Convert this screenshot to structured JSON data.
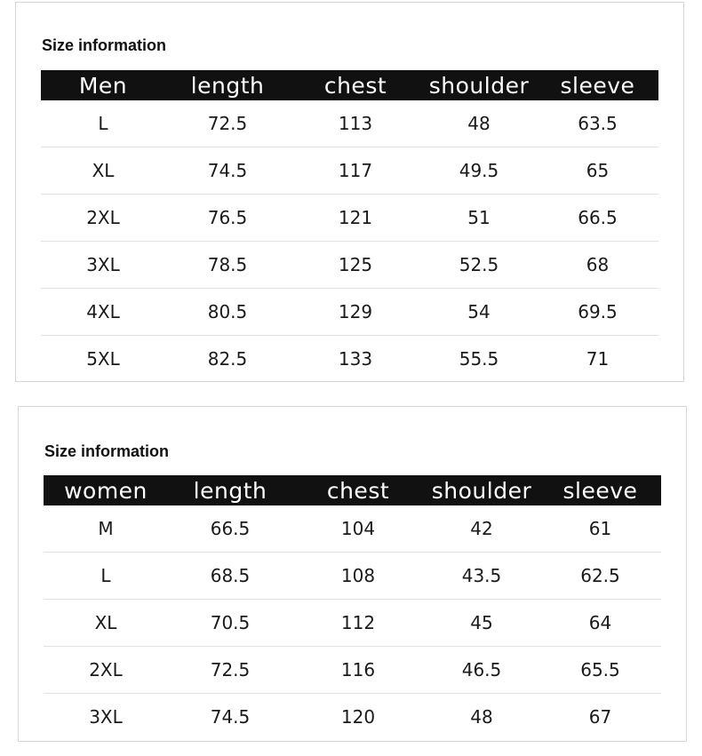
{
  "men": {
    "title": "Size information",
    "headers": [
      "Men",
      "length",
      "chest",
      "shoulder",
      "sleeve"
    ],
    "rows": [
      [
        "L",
        "72.5",
        "113",
        "48",
        "63.5"
      ],
      [
        "XL",
        "74.5",
        "117",
        "49.5",
        "65"
      ],
      [
        "2XL",
        "76.5",
        "121",
        "51",
        "66.5"
      ],
      [
        "3XL",
        "78.5",
        "125",
        "52.5",
        "68"
      ],
      [
        "4XL",
        "80.5",
        "129",
        "54",
        "69.5"
      ],
      [
        "5XL",
        "82.5",
        "133",
        "55.5",
        "71"
      ]
    ]
  },
  "women": {
    "title": "Size information",
    "headers": [
      "women",
      "length",
      "chest",
      "shoulder",
      "sleeve"
    ],
    "rows": [
      [
        "M",
        "66.5",
        "104",
        "42",
        "61"
      ],
      [
        "L",
        "68.5",
        "108",
        "43.5",
        "62.5"
      ],
      [
        "XL",
        "70.5",
        "112",
        "45",
        "64"
      ],
      [
        "2XL",
        "72.5",
        "116",
        "46.5",
        "65.5"
      ],
      [
        "3XL",
        "74.5",
        "120",
        "48",
        "67"
      ]
    ]
  },
  "colors": {
    "header_bg": "#111111",
    "header_text": "#ffffff",
    "row_divider": "#e1e1e1",
    "panel_border": "#d6d6d6"
  }
}
